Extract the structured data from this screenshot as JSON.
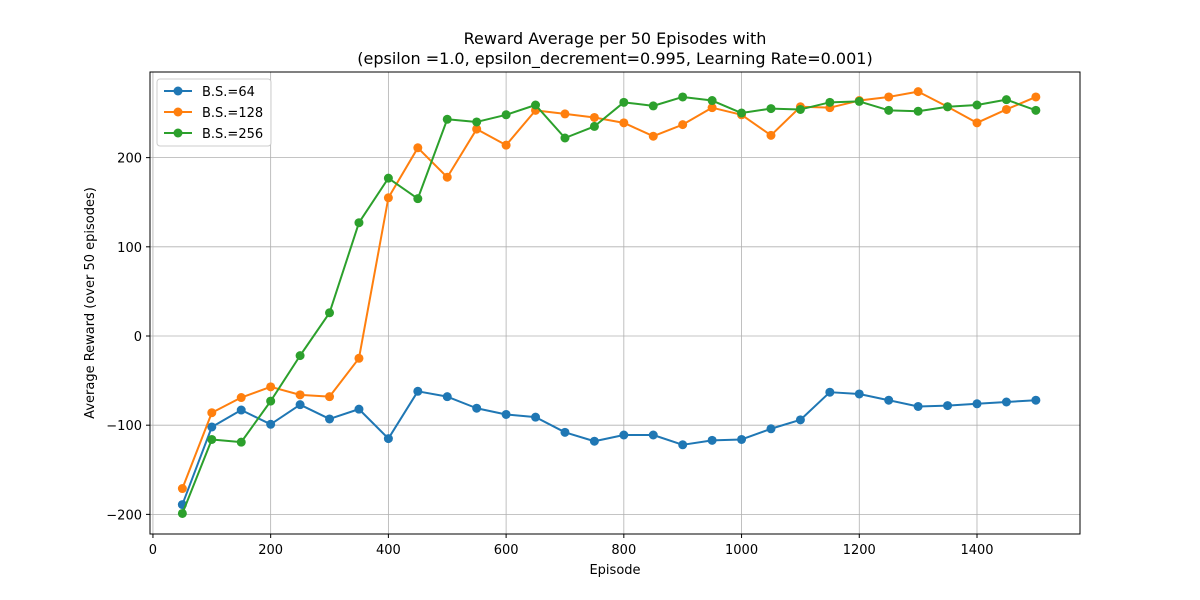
{
  "chart_data": {
    "type": "line",
    "title": "Reward Average per 50 Episodes with",
    "subtitle": "(epsilon =1.0, epsilon_decrement=0.995, Learning Rate=0.001)",
    "xlabel": "Episode",
    "ylabel": "Average Reward (over 50 episodes)",
    "xlim": [
      -5,
      1575
    ],
    "ylim": [
      -222,
      296
    ],
    "xticks": [
      0,
      200,
      400,
      600,
      800,
      1000,
      1200,
      1400
    ],
    "xtick_labels": [
      "0",
      "200",
      "400",
      "600",
      "800",
      "1000",
      "1200",
      "1400"
    ],
    "yticks": [
      -200,
      -100,
      0,
      100,
      200
    ],
    "ytick_labels": [
      "−200",
      "−100",
      "0",
      "100",
      "200"
    ],
    "grid": true,
    "legend_position": "top-left",
    "x": [
      50,
      100,
      150,
      200,
      250,
      300,
      350,
      400,
      450,
      500,
      550,
      600,
      650,
      700,
      750,
      800,
      850,
      900,
      950,
      1000,
      1050,
      1100,
      1150,
      1200,
      1250,
      1300,
      1350,
      1400,
      1450,
      1500
    ],
    "series": [
      {
        "name": "B.S.=64",
        "color": "#1f77b4",
        "values": [
          -189,
          -102,
          -83,
          -99,
          -77,
          -93,
          -82,
          -115,
          -62,
          -68,
          -81,
          -88,
          -91,
          -108,
          -118,
          -111,
          -111,
          -122,
          -117,
          -116,
          -104,
          -94,
          -63,
          -65,
          -72,
          -79,
          -78,
          -76,
          -74,
          -72
        ]
      },
      {
        "name": "B.S.=128",
        "color": "#ff7f0e",
        "values": [
          -171,
          -86,
          -69,
          -57,
          -66,
          -68,
          -25,
          155,
          211,
          178,
          232,
          214,
          253,
          249,
          245,
          239,
          224,
          237,
          256,
          248,
          225,
          257,
          256,
          264,
          268,
          274,
          257,
          239,
          254,
          268
        ]
      },
      {
        "name": "B.S.=256",
        "color": "#2ca02c",
        "values": [
          -199,
          -116,
          -119,
          -73,
          -22,
          26,
          127,
          177,
          154,
          243,
          240,
          248,
          259,
          222,
          235,
          262,
          258,
          268,
          264,
          250,
          255,
          254,
          262,
          263,
          253,
          252,
          257,
          259,
          265,
          253
        ]
      }
    ]
  }
}
